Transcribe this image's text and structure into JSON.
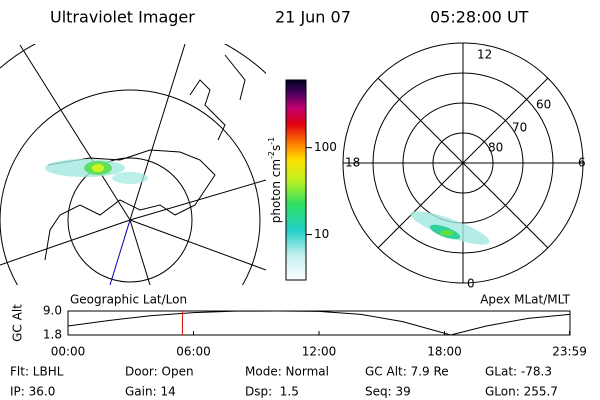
{
  "header": {
    "title": "Ultraviolet Imager",
    "date": "21 Jun 07",
    "time": "05:28:00 UT"
  },
  "geo_map": {
    "label": "Geographic Lat/Lon"
  },
  "colorbar": {
    "label": "photon cm",
    "exp1": "-2",
    "unit2": "s",
    "exp2": "-1",
    "log": true,
    "lim": [
      3,
      600
    ],
    "ticks": [
      10,
      100
    ]
  },
  "polar": {
    "label": "Apex MLat/MLT",
    "mlt_labels": [
      "12",
      "6",
      "0",
      "18"
    ],
    "lat_labels": [
      "60",
      "70",
      "80"
    ]
  },
  "altitude_plot": {
    "ylabel": "GC Alt",
    "ylim": [
      1.8,
      9.0
    ],
    "yticks": [
      {
        "value": 9.0,
        "label": "9.0"
      },
      {
        "value": 1.8,
        "label": "1.8"
      }
    ],
    "xlim": [
      0,
      24
    ],
    "xticks": [
      {
        "value": 0,
        "label": "00:00"
      },
      {
        "value": 6,
        "label": "06:00"
      },
      {
        "value": 12,
        "label": "12:00"
      },
      {
        "value": 18,
        "label": "18:00"
      },
      {
        "value": 23.98,
        "label": "23:59"
      }
    ],
    "x": [
      0,
      2,
      4,
      6,
      8,
      10,
      12,
      14,
      16,
      18.3,
      20,
      22,
      23.98
    ],
    "values": [
      4.5,
      6.2,
      7.6,
      8.5,
      8.95,
      9.0,
      8.9,
      8.0,
      5.8,
      1.8,
      4.5,
      6.8,
      8.0
    ],
    "marker": 5.47
  },
  "status": [
    [
      "Flt: LBHL",
      "Door: Open",
      "Mode: Normal",
      "GC Alt: 7.9 Re",
      "GLat: -78.3"
    ],
    [
      "IP: 36.0",
      "Gain: 14",
      "Dsp:  1.5",
      "Seq: 39",
      "GLon: 255.7"
    ]
  ]
}
